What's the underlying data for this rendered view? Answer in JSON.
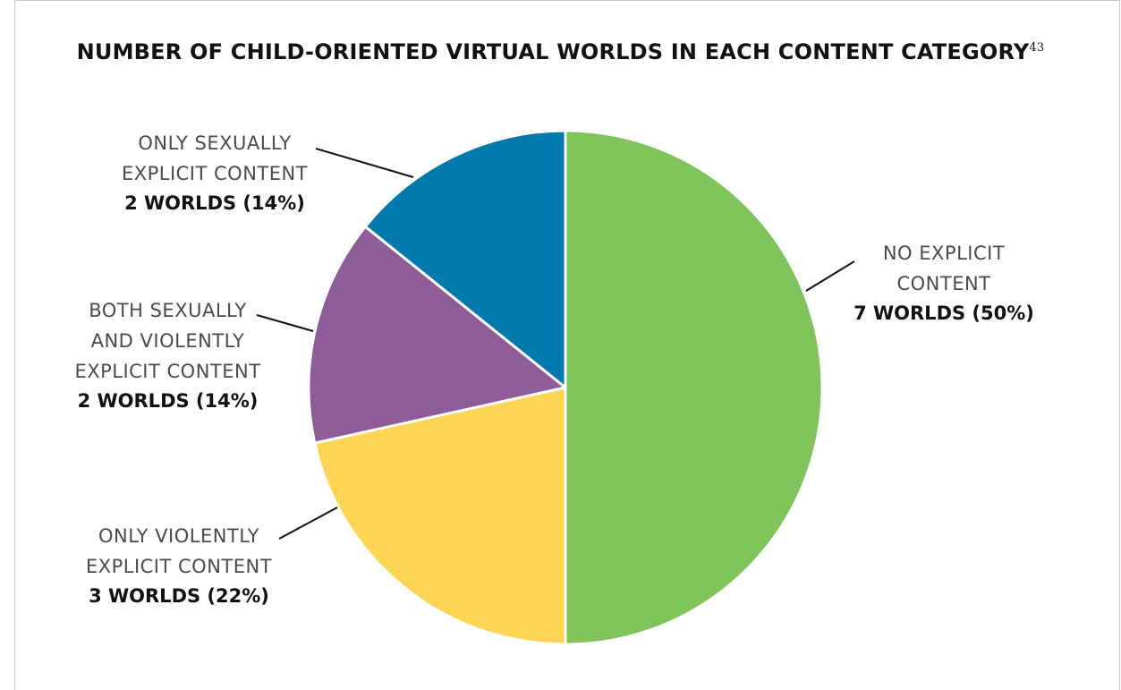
{
  "chart_data": {
    "type": "pie",
    "title": "NUMBER OF CHILD-ORIENTED VIRTUAL WORLDS IN EACH CONTENT CATEGORY",
    "title_superscript": "43",
    "unit": "worlds",
    "slices": [
      {
        "name": "No explicit content",
        "label_lines": [
          "NO EXPLICIT",
          "CONTENT"
        ],
        "value_label": "7 WORLDS (50%)",
        "value": 7,
        "percent": 50,
        "color": "#7fc45a"
      },
      {
        "name": "Only violently explicit content",
        "label_lines": [
          "ONLY VIOLENTLY",
          "EXPLICIT CONTENT"
        ],
        "value_label": "3 WORLDS (22%)",
        "value": 3,
        "percent": 22,
        "color": "#fdd553"
      },
      {
        "name": "Both sexually and violently explicit content",
        "label_lines": [
          "BOTH SEXUALLY",
          "AND VIOLENTLY",
          "EXPLICIT CONTENT"
        ],
        "value_label": "2 WORLDS (14%)",
        "value": 2,
        "percent": 14,
        "color": "#8e5c98"
      },
      {
        "name": "Only sexually explicit content",
        "label_lines": [
          "ONLY SEXUALLY",
          "EXPLICIT CONTENT"
        ],
        "value_label": "2 WORLDS (14%)",
        "value": 2,
        "percent": 14,
        "color": "#0079ad"
      }
    ],
    "start_angle": "12 o'clock",
    "direction": "clockwise",
    "legend": "none"
  }
}
